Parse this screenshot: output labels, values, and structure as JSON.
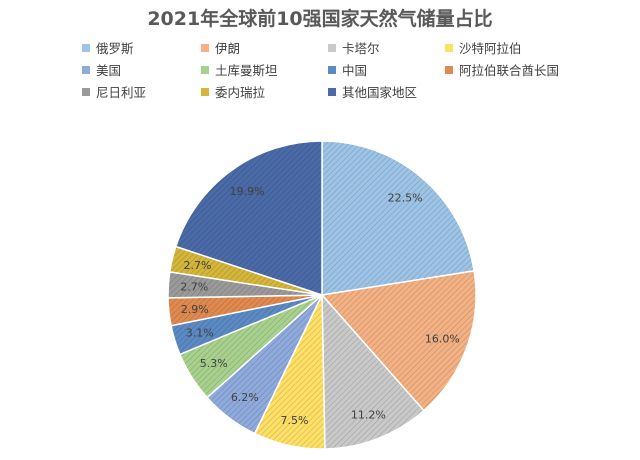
{
  "chart_data": {
    "type": "pie",
    "title": "2021年全球前10强国家天然气储量占比",
    "legend_position": "top",
    "slices": [
      {
        "name": "俄罗斯",
        "value": 22.5,
        "label": "22.5%",
        "color": "#9dc3e6"
      },
      {
        "name": "伊朗",
        "value": 16.0,
        "label": "16.0%",
        "color": "#f4b183"
      },
      {
        "name": "卡塔尔",
        "value": 11.2,
        "label": "11.2%",
        "color": "#c9c9c9"
      },
      {
        "name": "沙特阿拉伯",
        "value": 7.5,
        "label": "7.5%",
        "color": "#ffe066"
      },
      {
        "name": "美国",
        "value": 6.2,
        "label": "6.2%",
        "color": "#8faadc"
      },
      {
        "name": "土库曼斯坦",
        "value": 5.3,
        "label": "5.3%",
        "color": "#a9d18e"
      },
      {
        "name": "中国",
        "value": 3.1,
        "label": "3.1%",
        "color": "#5b8ac4"
      },
      {
        "name": "阿拉伯联合酋长国",
        "value": 2.9,
        "label": "2.9%",
        "color": "#e08a50"
      },
      {
        "name": "尼日利亚",
        "value": 2.7,
        "label": "2.7%",
        "color": "#9a9a9a"
      },
      {
        "name": "委内瑞拉",
        "value": 2.7,
        "label": "2.7%",
        "color": "#d4b63a"
      },
      {
        "name": "其他国家地区",
        "value": 19.9,
        "label": "19.9%",
        "color": "#4a6aa8"
      }
    ]
  }
}
